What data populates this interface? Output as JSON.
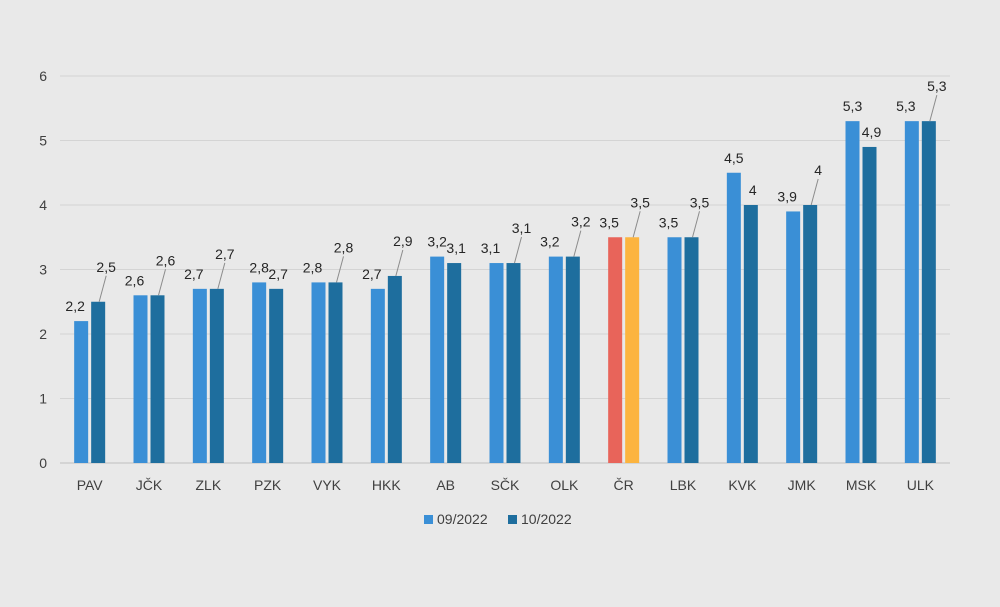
{
  "chart_data": {
    "type": "bar",
    "title": "",
    "xlabel": "",
    "ylabel": "",
    "ylim": [
      0,
      6
    ],
    "yticks": [
      0,
      1,
      2,
      3,
      4,
      5,
      6
    ],
    "grid": true,
    "legend": "bottom",
    "categories": [
      "PAV",
      "JČK",
      "ZLK",
      "PZK",
      "VYK",
      "HKK",
      "AB",
      "SČK",
      "OLK",
      "ČR",
      "LBK",
      "KVK",
      "JMK",
      "MSK",
      "ULK"
    ],
    "series": [
      {
        "name": "09/2022",
        "color": "#3a8fd6",
        "values": [
          2.2,
          2.6,
          2.7,
          2.8,
          2.8,
          2.7,
          3.2,
          3.1,
          3.2,
          3.5,
          3.5,
          4.5,
          3.9,
          5.3,
          5.3
        ],
        "labels": [
          "2,2",
          "2,6",
          "2,7",
          "2,8",
          "2,8",
          "2,7",
          "3,2",
          "3,1",
          "3,2",
          "3,5",
          "3,5",
          "4,5",
          "3,9",
          "5,3",
          "5,3"
        ]
      },
      {
        "name": "10/2022",
        "color": "#1e6e9e",
        "values": [
          2.5,
          2.6,
          2.7,
          2.7,
          2.8,
          2.9,
          3.1,
          3.1,
          3.2,
          3.5,
          3.5,
          4.0,
          4.0,
          4.9,
          5.3
        ],
        "labels": [
          "2,5",
          "2,6",
          "2,7",
          "2,7",
          "2,8",
          "2,9",
          "3,1",
          "3,1",
          "3,2",
          "3,5",
          "3,5",
          "4",
          "4",
          "4,9",
          "5,3"
        ]
      }
    ],
    "highlight": {
      "category": "ČR",
      "colors": [
        "#e8645a",
        "#fcb43f"
      ]
    }
  }
}
